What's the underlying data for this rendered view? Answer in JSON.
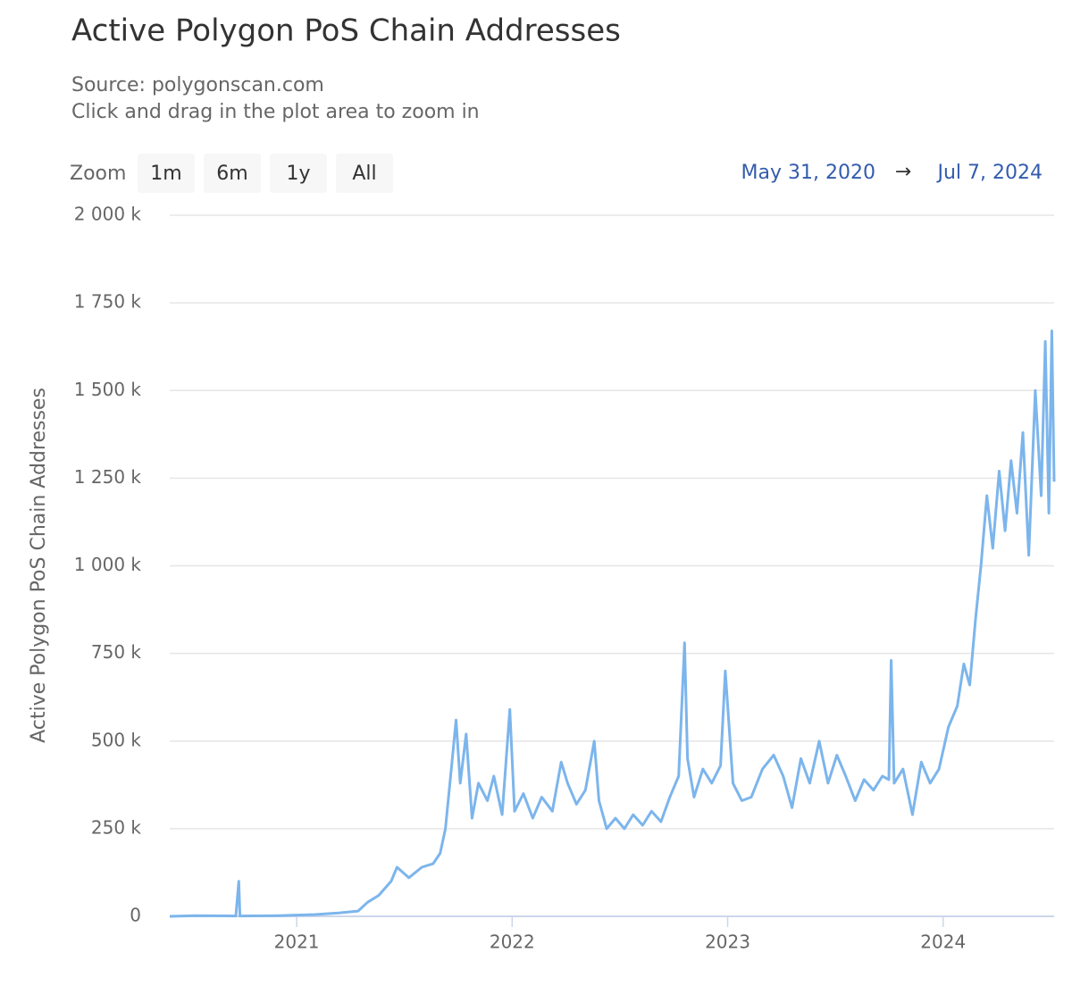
{
  "chart_data": {
    "type": "line",
    "title": "Active Polygon PoS Chain Addresses",
    "subtitle": [
      "Source: polygonscan.com",
      "Click and drag in the plot area to zoom in"
    ],
    "range_selector": {
      "label": "Zoom",
      "buttons": [
        "1m",
        "6m",
        "1y",
        "All"
      ],
      "from": "May 31, 2020",
      "arrow": "→",
      "to": "Jul 7, 2024"
    },
    "y_label": "Active Polygon PoS Chain Addresses",
    "color": "#7cb5ec",
    "grid": true,
    "x": [
      "2020-05-31",
      "2020-07-15",
      "2020-09-20",
      "2020-09-25",
      "2020-09-27",
      "2020-12-01",
      "2021-02-01",
      "2021-03-15",
      "2021-04-15",
      "2021-05-01",
      "2021-05-20",
      "2021-06-10",
      "2021-06-20",
      "2021-07-10",
      "2021-08-01",
      "2021-08-20",
      "2021-09-01",
      "2021-09-10",
      "2021-09-20",
      "2021-09-28",
      "2021-10-05",
      "2021-10-15",
      "2021-10-25",
      "2021-11-05",
      "2021-11-20",
      "2021-12-01",
      "2021-12-15",
      "2021-12-28",
      "2022-01-05",
      "2022-01-20",
      "2022-02-05",
      "2022-02-20",
      "2022-03-10",
      "2022-03-25",
      "2022-04-05",
      "2022-04-20",
      "2022-05-05",
      "2022-05-20",
      "2022-05-28",
      "2022-06-10",
      "2022-06-25",
      "2022-07-10",
      "2022-07-25",
      "2022-08-10",
      "2022-08-25",
      "2022-09-10",
      "2022-09-25",
      "2022-10-10",
      "2022-10-20",
      "2022-10-25",
      "2022-11-05",
      "2022-11-20",
      "2022-12-05",
      "2022-12-20",
      "2022-12-28",
      "2023-01-10",
      "2023-01-25",
      "2023-02-10",
      "2023-03-01",
      "2023-03-20",
      "2023-04-05",
      "2023-04-20",
      "2023-05-05",
      "2023-05-20",
      "2023-06-05",
      "2023-06-20",
      "2023-07-05",
      "2023-07-20",
      "2023-08-05",
      "2023-08-20",
      "2023-09-05",
      "2023-09-20",
      "2023-10-01",
      "2023-10-05",
      "2023-10-10",
      "2023-10-25",
      "2023-11-10",
      "2023-11-25",
      "2023-12-10",
      "2023-12-25",
      "2024-01-10",
      "2024-01-25",
      "2024-02-05",
      "2024-02-15",
      "2024-02-25",
      "2024-03-05",
      "2024-03-15",
      "2024-03-25",
      "2024-04-05",
      "2024-04-15",
      "2024-04-25",
      "2024-05-05",
      "2024-05-15",
      "2024-05-25",
      "2024-06-05",
      "2024-06-15",
      "2024-06-22",
      "2024-06-28",
      "2024-07-03",
      "2024-07-07"
    ],
    "values": [
      0,
      2000,
      1000,
      100000,
      1000,
      2000,
      5000,
      10000,
      15000,
      40000,
      60000,
      100000,
      140000,
      110000,
      140000,
      150000,
      180000,
      250000,
      420000,
      560000,
      380000,
      520000,
      280000,
      380000,
      330000,
      400000,
      290000,
      590000,
      300000,
      350000,
      280000,
      340000,
      300000,
      440000,
      380000,
      320000,
      360000,
      500000,
      330000,
      250000,
      280000,
      250000,
      290000,
      260000,
      300000,
      270000,
      340000,
      400000,
      780000,
      450000,
      340000,
      420000,
      380000,
      430000,
      700000,
      380000,
      330000,
      340000,
      420000,
      460000,
      400000,
      310000,
      450000,
      380000,
      500000,
      380000,
      460000,
      400000,
      330000,
      390000,
      360000,
      400000,
      390000,
      730000,
      380000,
      420000,
      290000,
      440000,
      380000,
      420000,
      540000,
      600000,
      720000,
      660000,
      850000,
      1000000,
      1200000,
      1050000,
      1270000,
      1100000,
      1300000,
      1150000,
      1380000,
      1030000,
      1500000,
      1200000,
      1640000,
      1150000,
      1670000,
      1240000
    ],
    "xlim": [
      "2020-05-31",
      "2024-07-07"
    ],
    "xticks": [
      {
        "value": "2021-01-01",
        "label": "2021"
      },
      {
        "value": "2022-01-01",
        "label": "2022"
      },
      {
        "value": "2023-01-01",
        "label": "2023"
      },
      {
        "value": "2024-01-01",
        "label": "2024"
      }
    ],
    "ylim": [
      0,
      2000000
    ],
    "yticks": [
      0,
      {
        "value": 250000,
        "label": "250 k"
      },
      {
        "value": 500000,
        "label": "500 k"
      },
      {
        "value": 750000,
        "label": "750 k"
      },
      {
        "value": 1000000,
        "label": "1 000 k"
      },
      {
        "value": 1250000,
        "label": "1 250 k"
      },
      {
        "value": 1500000,
        "label": "1 500 k"
      },
      {
        "value": 1750000,
        "label": "1 750 k"
      },
      {
        "value": 2000000,
        "label": "2 000 k"
      }
    ]
  }
}
